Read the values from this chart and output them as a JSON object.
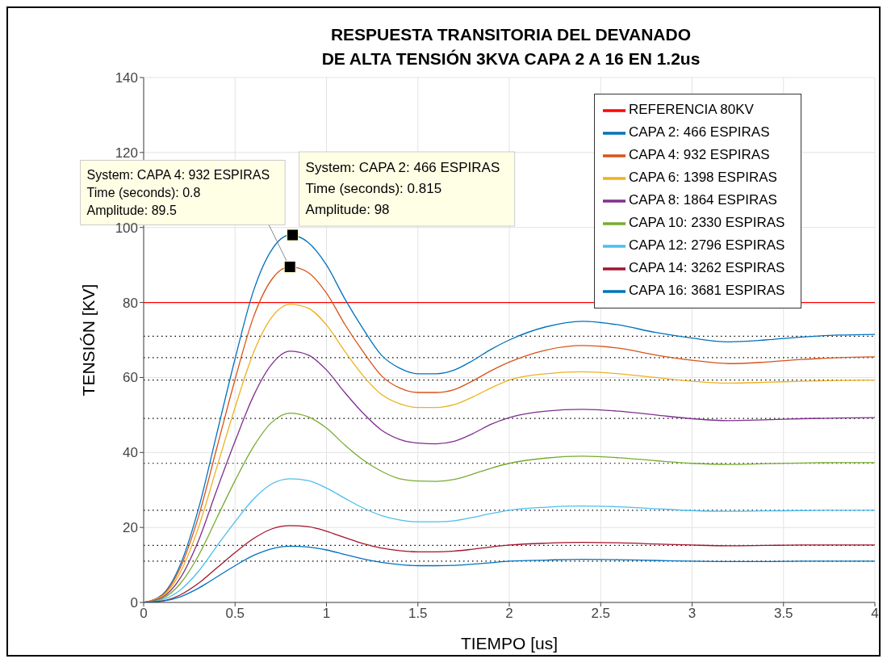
{
  "chart_data": {
    "type": "line",
    "title": "RESPUESTA TRANSITORIA DEL DEVANADO\nDE ALTA TENSIÓN 3KVA CAPA 2 A 16 EN 1.2us",
    "xlabel": "TIEMPO [us]",
    "ylabel": "TENSIÓN [KV]",
    "x": [
      0,
      0.1,
      0.2,
      0.3,
      0.4,
      0.5,
      0.6,
      0.7,
      0.8,
      0.9,
      1.0,
      1.1,
      1.2,
      1.3,
      1.4,
      1.5,
      1.6,
      1.7,
      1.8,
      1.9,
      2.0,
      2.2,
      2.4,
      2.6,
      2.8,
      3.0,
      3.2,
      3.4,
      3.6,
      3.8,
      4.0
    ],
    "series": [
      {
        "name": "REFERENCIA 80KV",
        "color": "#ff0000",
        "x": [
          0,
          4
        ],
        "values": [
          80,
          80
        ]
      },
      {
        "name": "CAPA 2: 466 ESPIRAS",
        "color": "#0072bd",
        "values": [
          0,
          2,
          10,
          25,
          45,
          65,
          83,
          94,
          98,
          96,
          90,
          81,
          73,
          66,
          62.5,
          61,
          61,
          62,
          64.5,
          67.5,
          70,
          73.5,
          75,
          74,
          72,
          70.5,
          69.5,
          70,
          70.8,
          71.3,
          71.5
        ]
      },
      {
        "name": "CAPA 4: 932 ESPIRAS",
        "color": "#d95319",
        "values": [
          0,
          1.8,
          9.2,
          22.9,
          41.2,
          59.5,
          76,
          86.1,
          89.5,
          88,
          82.5,
          74.2,
          66.9,
          60.5,
          57.2,
          56,
          56,
          56.8,
          59.1,
          61.8,
          64.1,
          67.3,
          68.5,
          67.8,
          66,
          64.6,
          63.7,
          64.1,
          64.8,
          65.3,
          65.5
        ]
      },
      {
        "name": "CAPA 6: 1398 ESPIRAS",
        "color": "#edb120",
        "values": [
          0,
          1.6,
          8,
          20,
          36,
          52,
          66.5,
          76,
          79.5,
          78.5,
          74,
          67,
          60.5,
          55.5,
          53,
          52,
          52,
          52.8,
          54.8,
          57.2,
          59.3,
          61,
          61.5,
          61,
          60,
          59,
          58.5,
          58.7,
          59,
          59.2,
          59.3
        ]
      },
      {
        "name": "CAPA 8: 1864 ESPIRAS",
        "color": "#7e2f8e",
        "values": [
          0,
          1.3,
          6.5,
          16.5,
          30,
          43,
          55,
          63.5,
          67,
          66,
          62,
          56,
          50.5,
          46,
          43.5,
          42.5,
          42.3,
          43,
          45,
          47.5,
          49.3,
          51,
          51.5,
          51,
          50,
          49,
          48.5,
          48.7,
          49,
          49.2,
          49.3
        ]
      },
      {
        "name": "CAPA 10: 2330 ESPIRAS",
        "color": "#77ac30",
        "values": [
          0,
          1,
          5,
          12.5,
          22.5,
          32.5,
          41.5,
          48,
          50.5,
          49.5,
          46.5,
          42,
          38,
          35,
          33,
          32.4,
          32.3,
          32.8,
          34.2,
          35.8,
          37.1,
          38.5,
          39,
          38.6,
          37.8,
          37.1,
          36.8,
          37,
          37.2,
          37.3,
          37.3
        ]
      },
      {
        "name": "CAPA 12: 2796 ESPIRAS",
        "color": "#4dbeee",
        "values": [
          0,
          0.7,
          3.3,
          8.3,
          15,
          21.5,
          27.5,
          31.6,
          33,
          32.5,
          30.5,
          27.8,
          25.2,
          23.2,
          22,
          21.5,
          21.5,
          21.8,
          22.7,
          23.7,
          24.6,
          25.4,
          25.7,
          25.5,
          25,
          24.5,
          24.3,
          24.4,
          24.5,
          24.6,
          24.6
        ]
      },
      {
        "name": "CAPA 14: 3262 ESPIRAS",
        "color": "#a2142f",
        "values": [
          0,
          0.4,
          2,
          5.1,
          9.2,
          13.3,
          17,
          19.6,
          20.5,
          20.2,
          19,
          17.3,
          15.7,
          14.5,
          13.8,
          13.5,
          13.5,
          13.7,
          14.2,
          14.8,
          15.3,
          15.8,
          16,
          15.9,
          15.6,
          15.3,
          15.1,
          15.2,
          15.3,
          15.3,
          15.3
        ]
      },
      {
        "name": "CAPA 16: 3681 ESPIRAS",
        "color": "#0072bd",
        "values": [
          0,
          0.3,
          1.5,
          3.8,
          6.8,
          9.8,
          12.5,
          14.3,
          15,
          14.8,
          14,
          12.8,
          11.6,
          10.7,
          10.1,
          9.8,
          9.8,
          9.9,
          10.2,
          10.6,
          11,
          11.3,
          11.5,
          11.4,
          11.2,
          11,
          10.9,
          10.9,
          11,
          11,
          11
        ]
      }
    ],
    "xlim": [
      0,
      4
    ],
    "xticks": [
      0,
      0.5,
      1,
      1.5,
      2,
      2.5,
      3,
      3.5,
      4
    ],
    "ylim": [
      0,
      140
    ],
    "yticks": [
      0,
      20,
      40,
      60,
      80,
      100,
      120,
      140
    ],
    "grid": true,
    "legend": "top right",
    "line_style": "solid",
    "ref_lines": [
      {
        "axis": "y",
        "value": 71,
        "color": "#000000",
        "line_style": "dotted"
      },
      {
        "axis": "y",
        "value": 65.3,
        "color": "#000000",
        "line_style": "dotted"
      },
      {
        "axis": "y",
        "value": 59.3,
        "color": "#000000",
        "line_style": "dotted"
      },
      {
        "axis": "y",
        "value": 49.1,
        "color": "#000000",
        "line_style": "dotted"
      },
      {
        "axis": "y",
        "value": 37.1,
        "color": "#000000",
        "line_style": "dotted"
      },
      {
        "axis": "y",
        "value": 24.6,
        "color": "#000000",
        "line_style": "dotted"
      },
      {
        "axis": "y",
        "value": 15.2,
        "color": "#000000",
        "line_style": "dotted"
      },
      {
        "axis": "y",
        "value": 11,
        "color": "#000000",
        "line_style": "dotted"
      }
    ],
    "annotations": [
      {
        "text": "System: CAPA 2: 466 ESPIRAS\nTime (seconds): 0.815\nAmplitude: 98",
        "x": 0.815,
        "y": 98
      },
      {
        "text": "System: CAPA 4: 932 ESPIRAS\nTime (seconds): 0.8\nAmplitude: 89.5",
        "x": 0.8,
        "y": 89.5
      }
    ]
  }
}
